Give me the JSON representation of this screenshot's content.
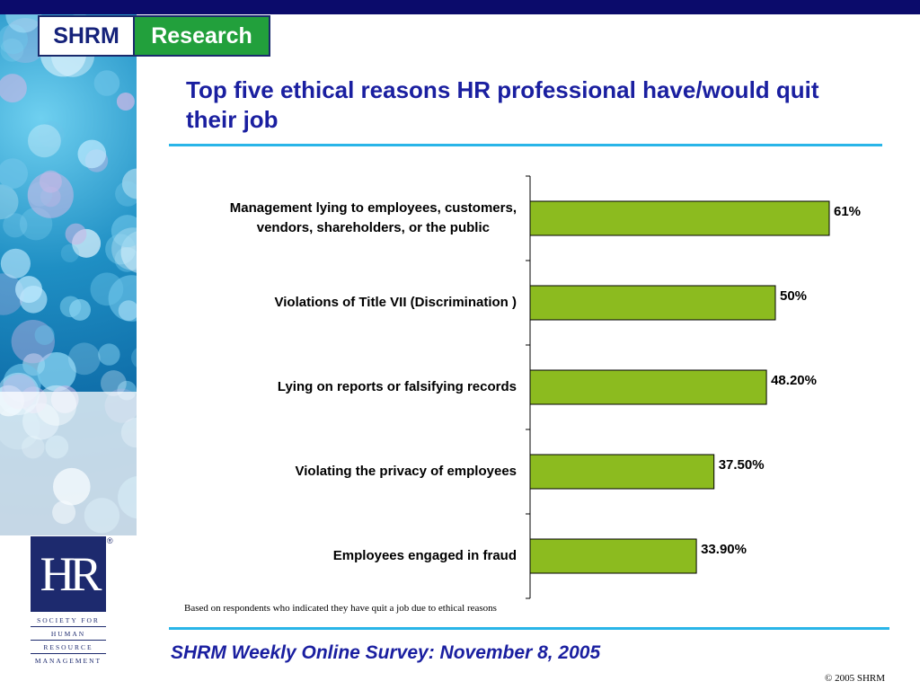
{
  "brand": {
    "org": "SHRM",
    "section": "Research"
  },
  "title": "Top five ethical reasons HR professional have/would quit their job",
  "chart_data": {
    "type": "bar",
    "orientation": "horizontal",
    "categories": [
      [
        "Management lying to employees, customers,",
        "vendors, shareholders, or the public"
      ],
      [
        "Violations of Title VII (Discrimination )"
      ],
      [
        "Lying on reports or falsifying records"
      ],
      [
        "Violating the privacy of employees"
      ],
      [
        "Employees engaged in fraud"
      ]
    ],
    "values": [
      61,
      50,
      48.2,
      37.5,
      33.9
    ],
    "value_labels": [
      "61%",
      "50%",
      "48.20%",
      "37.50%",
      "33.90%"
    ],
    "bar_color": "#8cbb1f",
    "xlim": [
      0,
      100
    ],
    "grid": false,
    "legend": "none"
  },
  "note": "Based on respondents who indicated they have quit a job due to ethical reasons",
  "footer": "SHRM Weekly Online Survey: November 8, 2005",
  "copyright": "© 2005 SHRM",
  "hr_logo": {
    "mark": "HR",
    "registered": "®",
    "lines": [
      "SOCIETY FOR",
      "HUMAN",
      "RESOURCE",
      "MANAGEMENT"
    ]
  },
  "colors": {
    "accent_blue": "#1a1fa0",
    "rule_cyan": "#29b5e8",
    "top_bar": "#0b0b6b",
    "brand_green": "#22a03c"
  }
}
